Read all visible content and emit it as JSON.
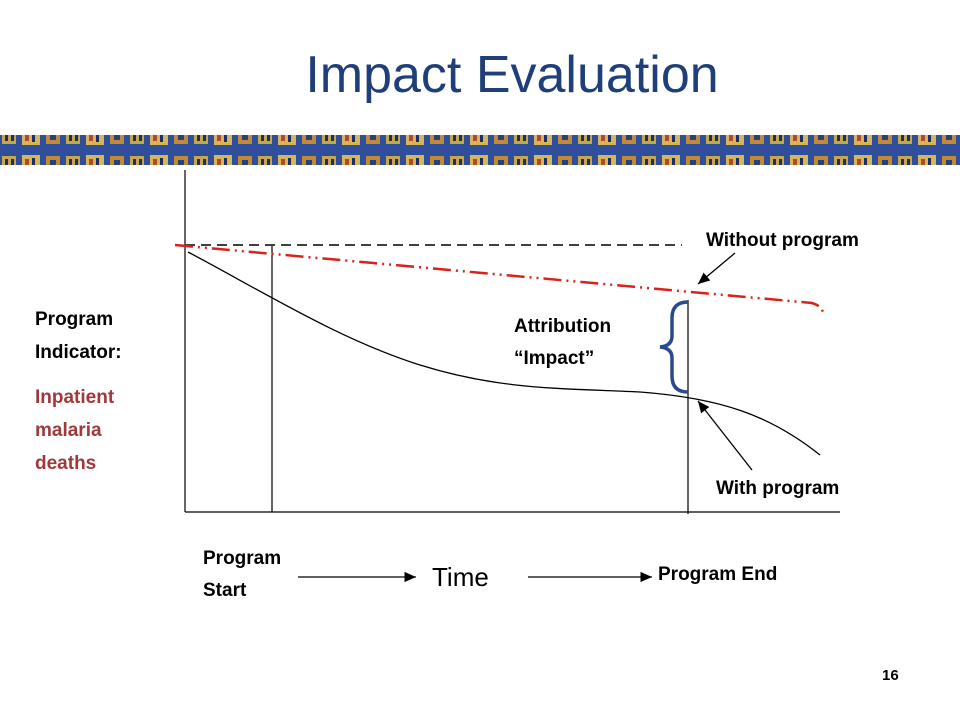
{
  "title": "Impact Evaluation",
  "labels": {
    "y_label": [
      "Program",
      "Indicator:"
    ],
    "y_sublabel": [
      "Inpatient",
      "malaria",
      "deaths"
    ],
    "without": "Without program",
    "with": "With program",
    "attribution": [
      "Attribution",
      "“Impact”"
    ],
    "start": [
      "Program",
      "Start"
    ],
    "time": "Time",
    "end": "Program End"
  },
  "page_number": "16"
}
